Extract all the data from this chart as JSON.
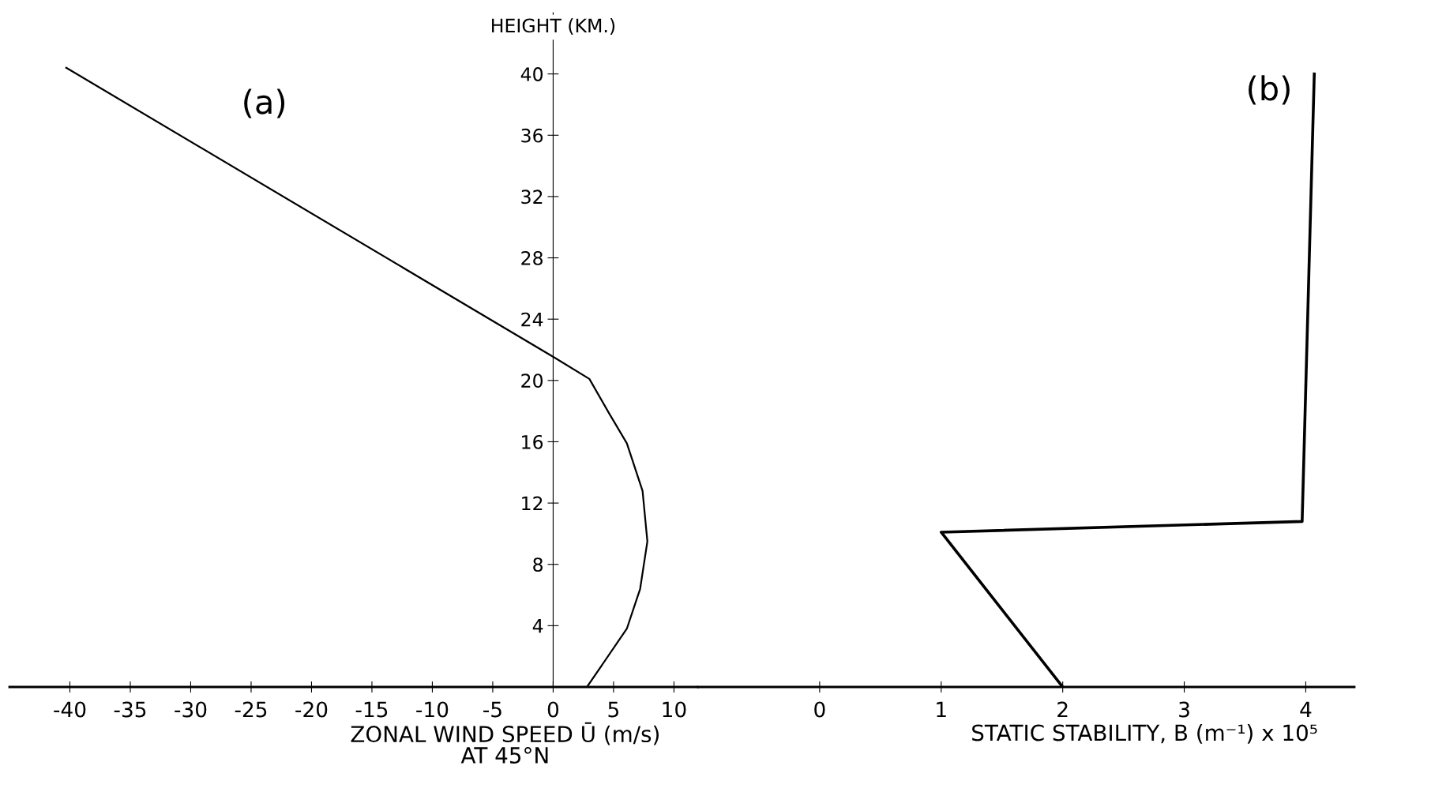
{
  "chart_data": [
    {
      "type": "line",
      "xlabel": "ZONAL WIND SPEED Ū (m/s)\nAT 45°N",
      "ylabel": "HEIGHT (KM.)",
      "x": [
        2.8,
        6.1,
        7.2,
        7.8,
        7.4,
        6.1,
        4.6,
        3.0,
        0.1,
        -40.3
      ],
      "series": [
        {
          "color": "#000000",
          "values": [
            0,
            3.8,
            6.4,
            9.5,
            12.8,
            15.9,
            17.9,
            20.1,
            21.5,
            40.4
          ]
        }
      ],
      "xlim": [
        -45,
        12
      ],
      "ylim": [
        0,
        44
      ],
      "xticks": [
        -40,
        -35,
        -30,
        -25,
        -20,
        -15,
        -10,
        -5,
        0,
        5,
        10
      ],
      "yticks": [
        4,
        8,
        12,
        16,
        20,
        24,
        28,
        32,
        36,
        40
      ],
      "annotations": [
        "(a)"
      ],
      "grid": false,
      "legend": false,
      "marker": "none",
      "line_style": "solid"
    },
    {
      "type": "line",
      "xlabel": "STATIC STABILITY, B (m⁻¹) x 10⁵",
      "x": [
        2.0,
        1.0,
        3.97,
        4.07
      ],
      "series": [
        {
          "color": "#000000",
          "values": [
            0,
            10.1,
            10.8,
            40.0
          ]
        }
      ],
      "xlim": [
        -1,
        4.4
      ],
      "ylim": [
        0,
        44
      ],
      "xticks": [
        0,
        1,
        2,
        3,
        4
      ],
      "tick_labels": "x",
      "annotations": [
        "(b)"
      ],
      "grid": false,
      "legend": false,
      "marker": "none",
      "line_style": "solid"
    }
  ]
}
